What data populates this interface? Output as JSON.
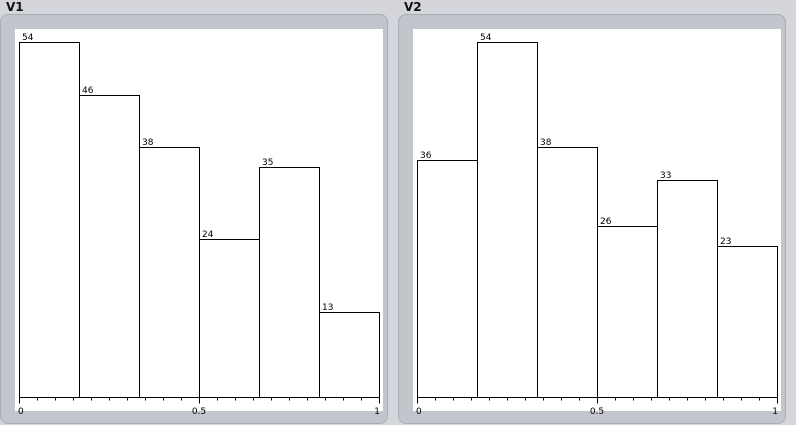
{
  "chart_data": [
    {
      "type": "bar",
      "title": "V1",
      "x_bin_edges": [
        0,
        0.1667,
        0.3333,
        0.5,
        0.6667,
        0.8333,
        1
      ],
      "values": [
        54,
        46,
        38,
        24,
        35,
        13
      ],
      "xticks": [
        "0",
        "0.5",
        "1"
      ],
      "ylim": [
        0,
        54
      ]
    },
    {
      "type": "bar",
      "title": "V2",
      "x_bin_edges": [
        0,
        0.1667,
        0.3333,
        0.5,
        0.6667,
        0.8333,
        1
      ],
      "values": [
        36,
        54,
        38,
        26,
        33,
        23
      ],
      "xticks": [
        "0",
        "0.5",
        "1"
      ],
      "ylim": [
        0,
        54
      ]
    }
  ]
}
